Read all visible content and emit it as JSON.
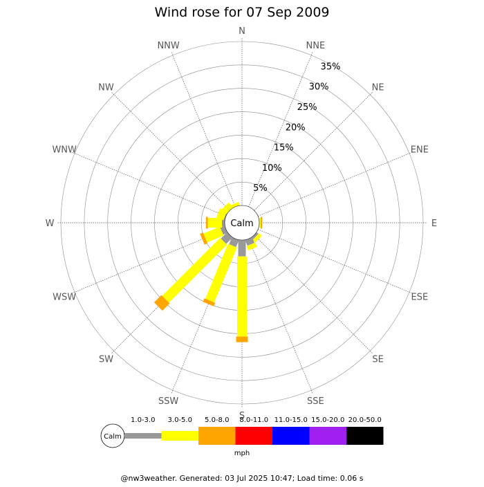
{
  "chart_data": {
    "type": "wind-rose",
    "title": "Wind rose for 07 Sep 2009",
    "calm_label": "Calm",
    "unit_label": "mph",
    "directions": [
      "N",
      "NNE",
      "NE",
      "ENE",
      "E",
      "ESE",
      "SE",
      "SSE",
      "S",
      "SSW",
      "SW",
      "WSW",
      "W",
      "WNW",
      "NW",
      "NNW"
    ],
    "ring_labels": [
      "5%",
      "10%",
      "15%",
      "20%",
      "25%",
      "30%",
      "35%"
    ],
    "ring_values": [
      5,
      10,
      15,
      20,
      25,
      30,
      35
    ],
    "radial_max": 35,
    "speed_bins": [
      {
        "label": "1.0-3.0",
        "color": "#999999"
      },
      {
        "label": "3.0-5.0",
        "color": "#ffff00"
      },
      {
        "label": "5.0-8.0",
        "color": "#ffa500"
      },
      {
        "label": "8.0-11.0",
        "color": "#ff0000"
      },
      {
        "label": "11.0-15.0",
        "color": "#0000ff"
      },
      {
        "label": "15.0-20.0",
        "color": "#a020f0"
      },
      {
        "label": "20.0-50.0",
        "color": "#000000"
      }
    ],
    "series": [
      {
        "direction": "N",
        "values": [
          0,
          0,
          0,
          0,
          0,
          0,
          0
        ]
      },
      {
        "direction": "NNE",
        "values": [
          0,
          0,
          0,
          0,
          0,
          0,
          0
        ]
      },
      {
        "direction": "NE",
        "values": [
          0,
          0,
          0,
          0,
          0,
          0,
          0
        ]
      },
      {
        "direction": "ENE",
        "values": [
          0,
          0,
          0,
          0,
          0,
          0,
          0
        ]
      },
      {
        "direction": "E",
        "values": [
          0,
          0.3,
          0.3,
          0,
          0,
          0,
          0
        ]
      },
      {
        "direction": "ESE",
        "values": [
          0,
          0,
          0,
          0,
          0,
          0,
          0
        ]
      },
      {
        "direction": "SE",
        "values": [
          0.5,
          0.8,
          0,
          0,
          0,
          0,
          0
        ]
      },
      {
        "direction": "SSE",
        "values": [
          1.3,
          1.0,
          0,
          0,
          0,
          0,
          0
        ]
      },
      {
        "direction": "S",
        "values": [
          3.5,
          17.1,
          1.2,
          0,
          0,
          0,
          0
        ]
      },
      {
        "direction": "SSW",
        "values": [
          1.6,
          12.7,
          0.8,
          0,
          0,
          0,
          0
        ]
      },
      {
        "direction": "SW",
        "values": [
          1.9,
          17.5,
          2.2,
          0,
          0,
          0,
          0
        ]
      },
      {
        "direction": "WSW",
        "values": [
          1.0,
          3.8,
          0.7,
          0,
          0,
          0,
          0
        ]
      },
      {
        "direction": "W",
        "values": [
          0.6,
          3.0,
          0.4,
          0,
          0,
          0,
          0
        ]
      },
      {
        "direction": "WNW",
        "values": [
          0.2,
          1.6,
          0,
          0,
          0,
          0,
          0
        ]
      },
      {
        "direction": "NW",
        "values": [
          0,
          1.4,
          0,
          0,
          0,
          0,
          0
        ]
      },
      {
        "direction": "NNW",
        "values": [
          0,
          0.7,
          0,
          0,
          0,
          0,
          0
        ]
      }
    ]
  },
  "footer": "@nw3weather. Generated: 03 Jul 2025 10:47; Load time: 0.06 s"
}
